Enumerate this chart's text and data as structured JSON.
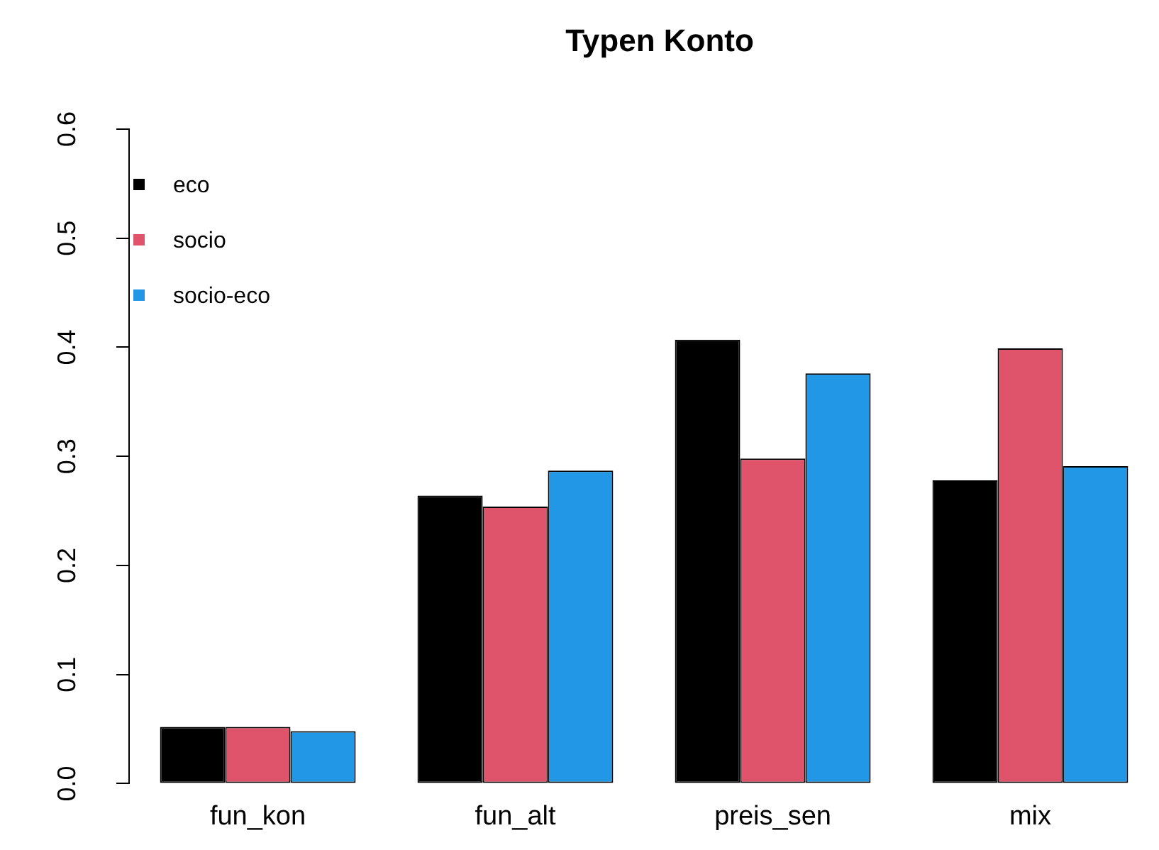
{
  "chart_data": {
    "type": "bar",
    "title": "Typen Konto",
    "categories": [
      "fun_kon",
      "fun_alt",
      "preis_sen",
      "mix"
    ],
    "series": [
      {
        "name": "eco",
        "color": "#000000",
        "values": [
          0.052,
          0.264,
          0.407,
          0.278
        ]
      },
      {
        "name": "socio",
        "color": "#df536b",
        "values": [
          0.052,
          0.254,
          0.298,
          0.399
        ]
      },
      {
        "name": "socio-eco",
        "color": "#2297e6",
        "values": [
          0.048,
          0.287,
          0.376,
          0.291
        ]
      }
    ],
    "ylim": [
      0,
      0.6
    ],
    "yticks": [
      {
        "value": 0,
        "label": "0.0"
      },
      0.1,
      0.2,
      0.3,
      0.4,
      0.5,
      0.6
    ],
    "grid": false,
    "legend": "top left"
  }
}
